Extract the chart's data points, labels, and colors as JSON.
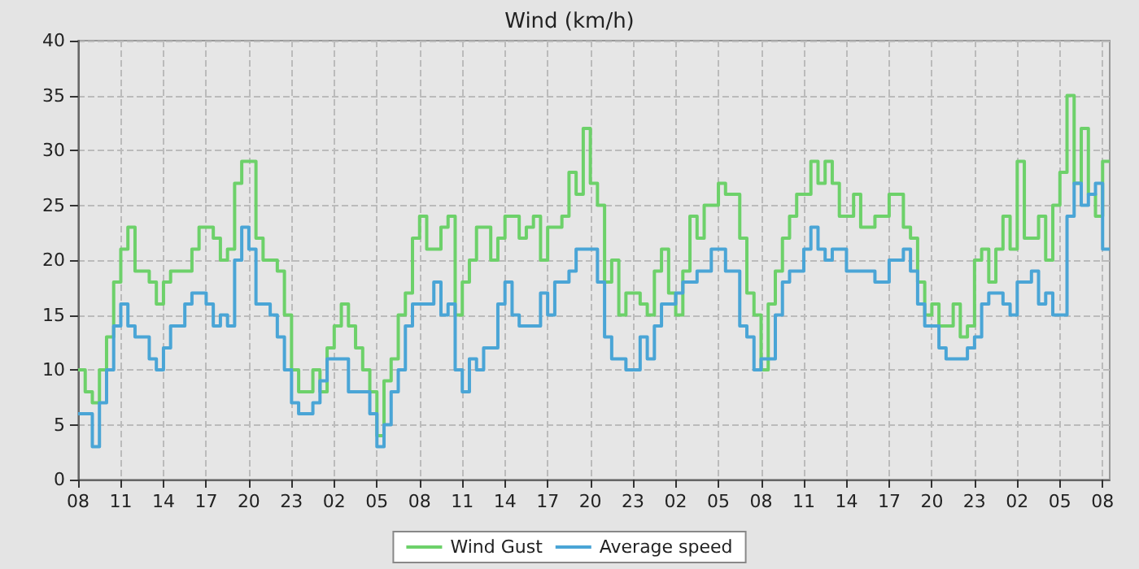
{
  "chart_data": {
    "type": "step",
    "title": "Wind (km/h)",
    "categories": [
      "08",
      null,
      null,
      null,
      null,
      null,
      "11",
      null,
      null,
      null,
      null,
      null,
      "14",
      null,
      null,
      null,
      null,
      null,
      "17",
      null,
      null,
      null,
      null,
      null,
      "20",
      null,
      null,
      null,
      null,
      null,
      "23",
      null,
      null,
      null,
      null,
      null,
      "02",
      null,
      null,
      null,
      null,
      null,
      "05",
      null,
      null,
      null,
      null,
      null,
      "08",
      null,
      null,
      null,
      null,
      null,
      "11",
      null,
      null,
      null,
      null,
      null,
      "14",
      null,
      null,
      null,
      null,
      null,
      "17",
      null,
      null,
      null,
      null,
      null,
      "20",
      null,
      null,
      null,
      null,
      null,
      "23",
      null,
      null,
      null,
      null,
      null,
      "02",
      null,
      null,
      null,
      null,
      null,
      "05",
      null,
      null,
      null,
      null,
      null,
      "08",
      null,
      null,
      null,
      null,
      null,
      "11",
      null,
      null,
      null,
      null,
      null,
      "14",
      null,
      null,
      null,
      null,
      null,
      "17",
      null,
      null,
      null,
      null,
      null,
      "20",
      null,
      null,
      null,
      null,
      null,
      "23",
      null,
      null,
      null,
      null,
      null,
      "02",
      null,
      null,
      null,
      null,
      null,
      "05",
      null,
      null,
      null,
      null,
      null,
      "08",
      null
    ],
    "ylim": [
      0,
      40
    ],
    "yticks": [
      0,
      5,
      10,
      15,
      20,
      25,
      30,
      35,
      40
    ],
    "grid": true,
    "legend": "bottom",
    "line_style": "solid",
    "series": [
      {
        "name": "Wind Gust",
        "color": "#6dd16a",
        "values": [
          10,
          8,
          7,
          10,
          13,
          18,
          21,
          23,
          19,
          19,
          18,
          16,
          18,
          19,
          19,
          19,
          21,
          23,
          23,
          22,
          20,
          21,
          27,
          29,
          29,
          22,
          20,
          20,
          19,
          15,
          10,
          8,
          8,
          10,
          8,
          12,
          14,
          16,
          14,
          12,
          10,
          8,
          4,
          9,
          11,
          15,
          17,
          22,
          24,
          21,
          21,
          23,
          24,
          15,
          18,
          20,
          23,
          23,
          20,
          22,
          24,
          24,
          22,
          23,
          24,
          20,
          23,
          23,
          24,
          28,
          26,
          32,
          27,
          25,
          18,
          20,
          15,
          17,
          17,
          16,
          15,
          19,
          21,
          17,
          15,
          19,
          24,
          22,
          25,
          25,
          27,
          26,
          26,
          22,
          17,
          15,
          10,
          16,
          19,
          22,
          24,
          26,
          26,
          29,
          27,
          29,
          27,
          24,
          24,
          26,
          23,
          23,
          24,
          24,
          26,
          26,
          23,
          22,
          18,
          15,
          16,
          14,
          14,
          16,
          13,
          14,
          20,
          21,
          18,
          21,
          24,
          21,
          29,
          22,
          22,
          24,
          20,
          25,
          28,
          35,
          27,
          32,
          26,
          24,
          29,
          29
        ]
      },
      {
        "name": "Average speed",
        "color": "#4aa5d6",
        "values": [
          6,
          6,
          3,
          7,
          10,
          14,
          16,
          14,
          13,
          13,
          11,
          10,
          12,
          14,
          14,
          16,
          17,
          17,
          16,
          14,
          15,
          14,
          20,
          23,
          21,
          16,
          16,
          15,
          13,
          10,
          7,
          6,
          6,
          7,
          9,
          11,
          11,
          11,
          8,
          8,
          8,
          6,
          3,
          5,
          8,
          10,
          14,
          16,
          16,
          16,
          18,
          15,
          16,
          10,
          8,
          11,
          10,
          12,
          12,
          16,
          18,
          15,
          14,
          14,
          14,
          17,
          15,
          18,
          18,
          19,
          21,
          21,
          21,
          18,
          13,
          11,
          11,
          10,
          10,
          13,
          11,
          14,
          16,
          16,
          17,
          18,
          18,
          19,
          19,
          21,
          21,
          19,
          19,
          14,
          13,
          10,
          11,
          11,
          15,
          18,
          19,
          19,
          21,
          23,
          21,
          20,
          21,
          21,
          19,
          19,
          19,
          19,
          18,
          18,
          20,
          20,
          21,
          19,
          16,
          14,
          14,
          12,
          11,
          11,
          11,
          12,
          13,
          16,
          17,
          17,
          16,
          15,
          18,
          18,
          19,
          16,
          17,
          15,
          15,
          24,
          27,
          25,
          26,
          27,
          21,
          21
        ]
      }
    ]
  }
}
